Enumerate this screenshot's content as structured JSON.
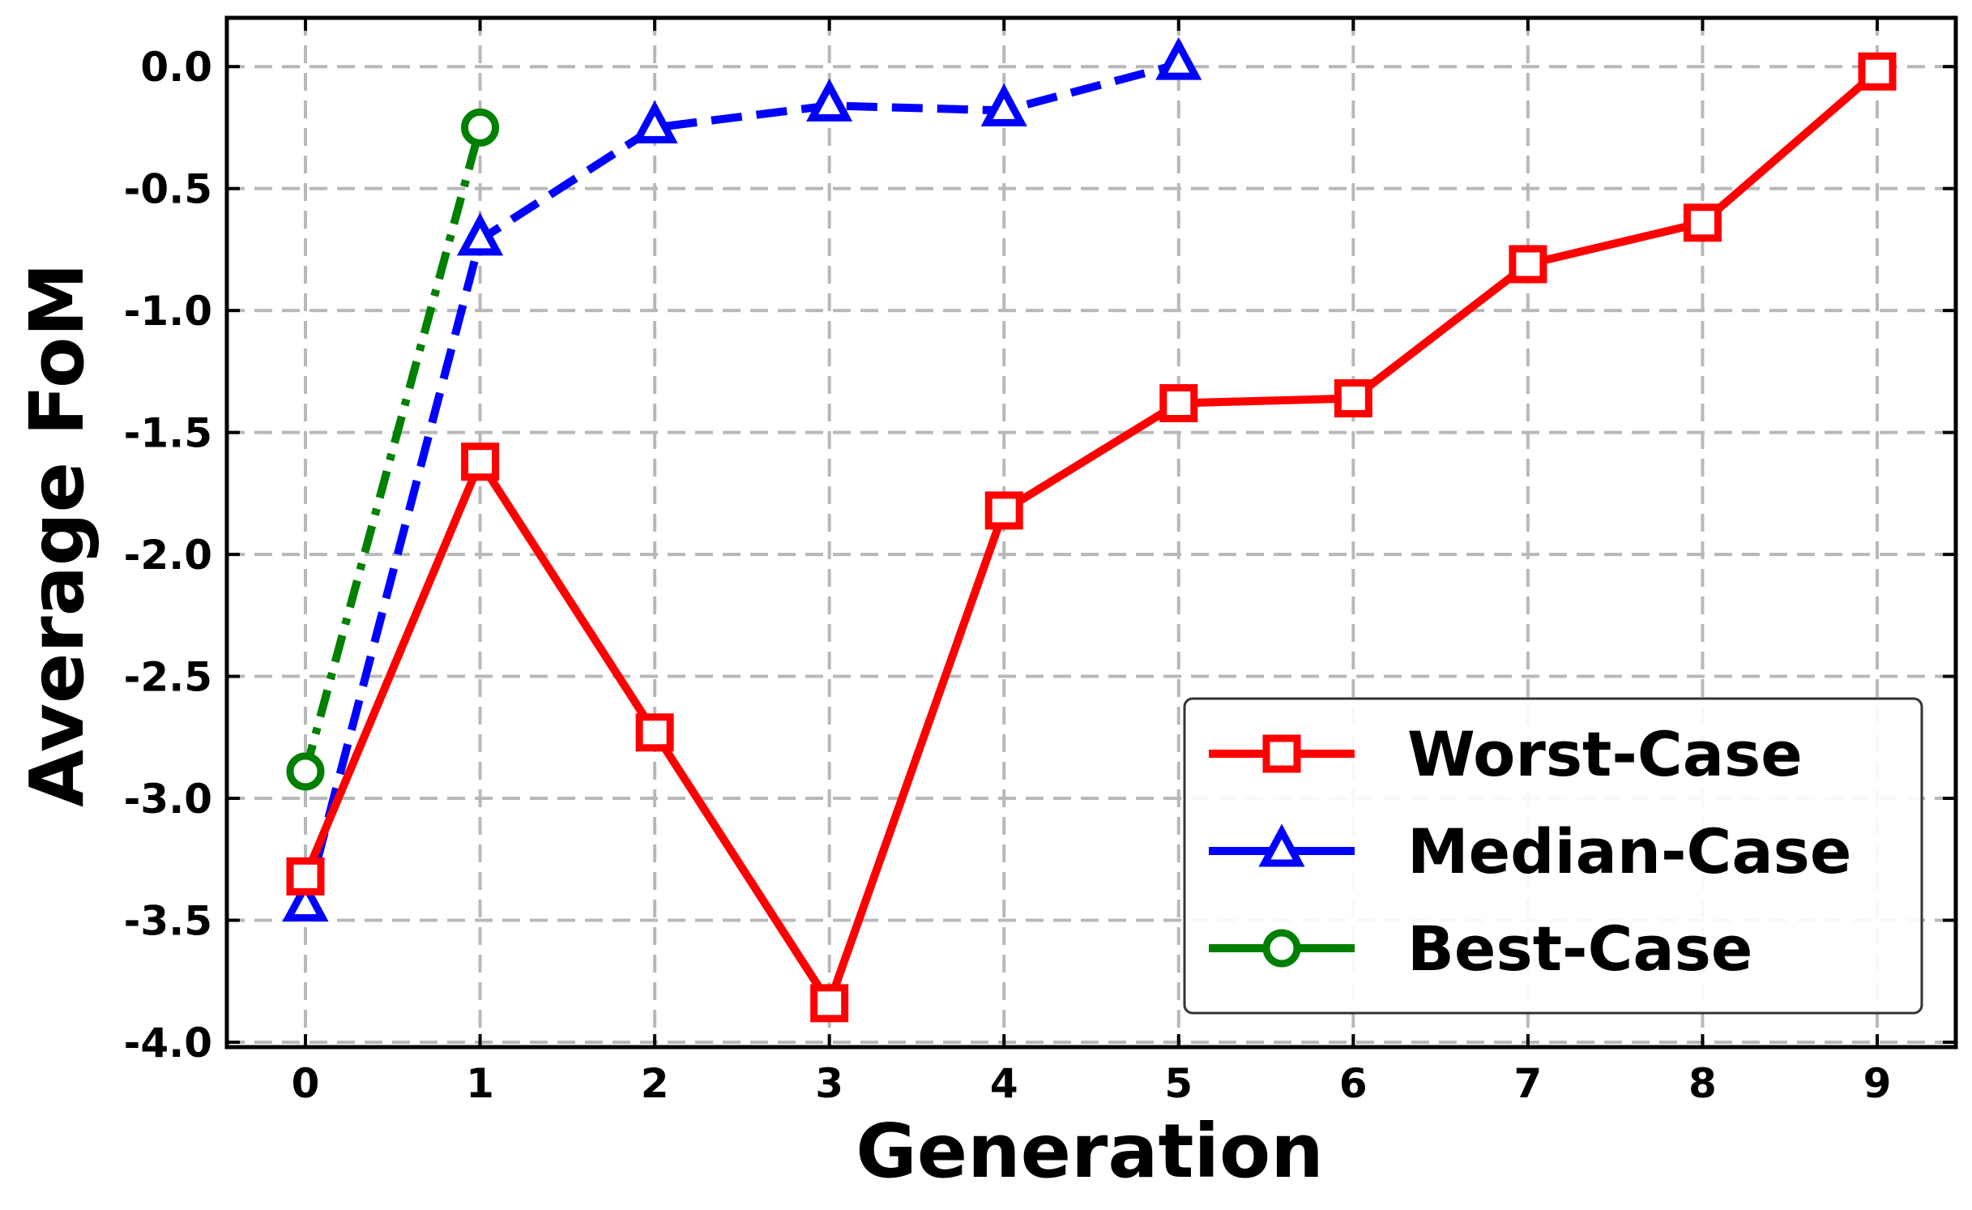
{
  "chart_data": {
    "type": "line",
    "xlabel": "Generation",
    "ylabel": "Average FoM",
    "xlim": [
      -0.45,
      9.45
    ],
    "ylim": [
      -4.02,
      0.2
    ],
    "x_ticks": [
      "0",
      "1",
      "2",
      "3",
      "4",
      "5",
      "6",
      "7",
      "8",
      "9"
    ],
    "y_ticks": [
      "0.0",
      "-0.5",
      "-1.0",
      "-1.5",
      "-2.0",
      "-2.5",
      "-3.0",
      "-3.5",
      "-4.0"
    ],
    "y_tick_values": [
      0.0,
      -0.5,
      -1.0,
      -1.5,
      -2.0,
      -2.5,
      -3.0,
      -3.5,
      -4.0
    ],
    "grid": true,
    "legend_position": "lower-right",
    "series": [
      {
        "name": "Worst-Case",
        "color": "#ff0000",
        "marker": "square",
        "line_style": "solid",
        "x": [
          0,
          1,
          2,
          3,
          4,
          5,
          6,
          7,
          8,
          9
        ],
        "values": [
          -3.32,
          -1.62,
          -2.73,
          -3.84,
          -1.82,
          -1.38,
          -1.36,
          -0.81,
          -0.64,
          -0.02
        ]
      },
      {
        "name": "Median-Case",
        "color": "#0000ff",
        "marker": "triangle",
        "line_style": "dashed",
        "x": [
          0,
          1,
          2,
          3,
          4,
          5
        ],
        "values": [
          -3.44,
          -0.71,
          -0.25,
          -0.16,
          -0.18,
          0.01
        ]
      },
      {
        "name": "Best-Case",
        "color": "#008000",
        "marker": "circle",
        "line_style": "dashdot",
        "x": [
          0,
          1
        ],
        "values": [
          -2.89,
          -0.25
        ]
      }
    ]
  }
}
